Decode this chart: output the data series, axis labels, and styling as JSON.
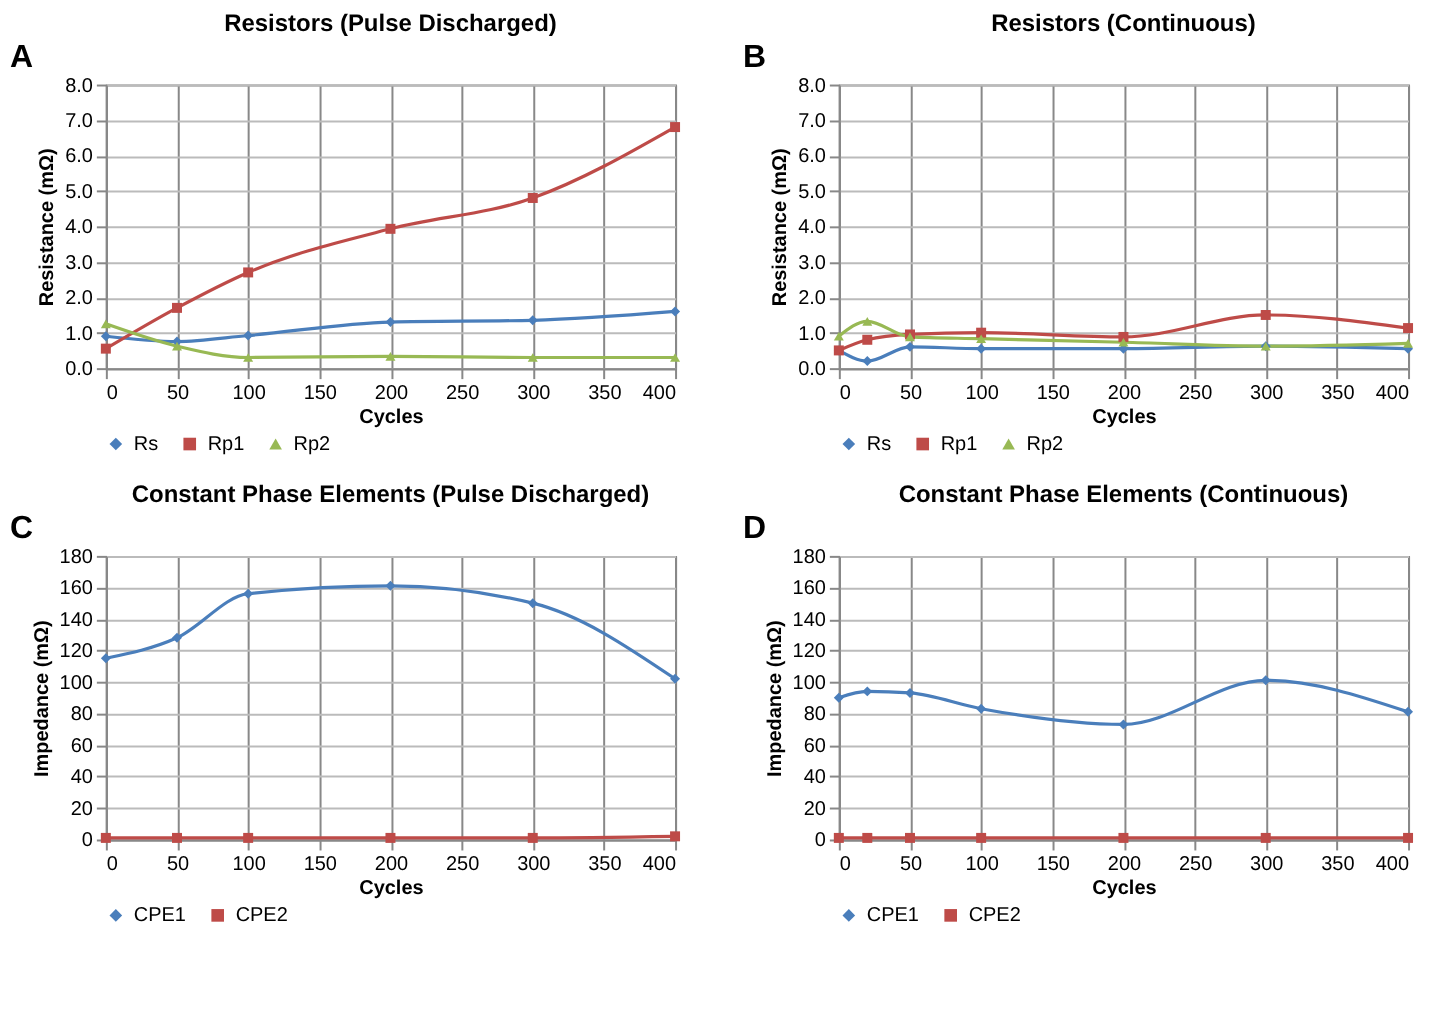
{
  "chart_data": [
    {
      "type": "line",
      "title": "Resistors (Pulse Discharged)",
      "annotations": [
        "A"
      ],
      "xlabel": "Cycles",
      "ylabel": "Resistance (mΩ)",
      "x": [
        0,
        50,
        100,
        200,
        300,
        400
      ],
      "xlim": [
        0,
        400
      ],
      "xticks": [
        0,
        50,
        100,
        150,
        200,
        250,
        300,
        350,
        400
      ],
      "ylim": [
        0,
        8
      ],
      "yticks": [
        {
          "value": 0,
          "label": "0.0"
        },
        {
          "value": 1,
          "label": "1.0"
        },
        {
          "value": 2,
          "label": "2.0"
        },
        {
          "value": 3,
          "label": "3.0"
        },
        {
          "value": 4,
          "label": "4.0"
        },
        {
          "value": 5,
          "label": "5.0"
        },
        {
          "value": 6,
          "label": "6.0"
        },
        {
          "value": 7,
          "label": "7.0"
        },
        {
          "value": 8,
          "label": "8.0"
        }
      ],
      "grid": true,
      "legend": "bottom",
      "series": [
        {
          "name": "Rs",
          "color": "#4a7ebb",
          "marker": "diamond",
          "values": [
            0.9,
            0.75,
            0.92,
            1.3,
            1.35,
            1.6
          ]
        },
        {
          "name": "Rp1",
          "color": "#be4b48",
          "marker": "square",
          "values": [
            0.55,
            1.7,
            2.7,
            3.93,
            4.8,
            6.8
          ]
        },
        {
          "name": "Rp2",
          "color": "#98b954",
          "marker": "triangle",
          "values": [
            1.25,
            0.62,
            0.3,
            0.33,
            0.3,
            0.3
          ]
        }
      ]
    },
    {
      "type": "line",
      "title": "Resistors (Continuous)",
      "annotations": [
        "B"
      ],
      "xlabel": "Cycles",
      "ylabel": "Resistance (mΩ)",
      "x": [
        0,
        20,
        50,
        100,
        200,
        300,
        400
      ],
      "xlim": [
        0,
        400
      ],
      "xticks": [
        0,
        50,
        100,
        150,
        200,
        250,
        300,
        350,
        400
      ],
      "ylim": [
        0,
        8
      ],
      "yticks": [
        {
          "value": 0,
          "label": "0.0"
        },
        {
          "value": 1,
          "label": "1.0"
        },
        {
          "value": 2,
          "label": "2.0"
        },
        {
          "value": 3,
          "label": "3.0"
        },
        {
          "value": 4,
          "label": "4.0"
        },
        {
          "value": 5,
          "label": "5.0"
        },
        {
          "value": 6,
          "label": "6.0"
        },
        {
          "value": 7,
          "label": "7.0"
        },
        {
          "value": 8,
          "label": "8.0"
        }
      ],
      "grid": true,
      "legend": "bottom",
      "series": [
        {
          "name": "Rs",
          "color": "#4a7ebb",
          "marker": "diamond",
          "values": [
            0.5,
            0.2,
            0.6,
            0.55,
            0.55,
            0.62,
            0.55
          ]
        },
        {
          "name": "Rp1",
          "color": "#be4b48",
          "marker": "square",
          "values": [
            0.5,
            0.8,
            0.95,
            1.0,
            0.88,
            1.5,
            1.13
          ]
        },
        {
          "name": "Rp2",
          "color": "#98b954",
          "marker": "triangle",
          "values": [
            0.9,
            1.32,
            0.88,
            0.83,
            0.73,
            0.62,
            0.7
          ]
        }
      ]
    },
    {
      "type": "line",
      "title": "Constant Phase Elements (Pulse Discharged)",
      "annotations": [
        "C"
      ],
      "xlabel": "Cycles",
      "ylabel": "Impedance (mΩ)",
      "x": [
        0,
        50,
        100,
        200,
        300,
        400
      ],
      "xlim": [
        0,
        400
      ],
      "xticks": [
        0,
        50,
        100,
        150,
        200,
        250,
        300,
        350,
        400
      ],
      "ylim": [
        0,
        180
      ],
      "yticks": [
        0,
        20,
        40,
        60,
        80,
        100,
        120,
        140,
        160,
        180
      ],
      "grid": true,
      "legend": "bottom",
      "series": [
        {
          "name": "CPE1",
          "color": "#4a7ebb",
          "marker": "diamond",
          "values": [
            115,
            128,
            156,
            161,
            150,
            102
          ]
        },
        {
          "name": "CPE2",
          "color": "#be4b48",
          "marker": "square",
          "values": [
            1,
            1,
            1,
            1,
            1,
            2
          ]
        }
      ]
    },
    {
      "type": "line",
      "title": "Constant Phase Elements (Continuous)",
      "annotations": [
        "D"
      ],
      "xlabel": "Cycles",
      "ylabel": "Impedance (mΩ)",
      "x": [
        0,
        20,
        50,
        100,
        200,
        300,
        400
      ],
      "xlim": [
        0,
        400
      ],
      "xticks": [
        0,
        50,
        100,
        150,
        200,
        250,
        300,
        350,
        400
      ],
      "ylim": [
        0,
        180
      ],
      "yticks": [
        0,
        20,
        40,
        60,
        80,
        100,
        120,
        140,
        160,
        180
      ],
      "grid": true,
      "legend": "bottom",
      "series": [
        {
          "name": "CPE1",
          "color": "#4a7ebb",
          "marker": "diamond",
          "values": [
            90,
            94,
            93,
            83,
            73,
            101,
            81
          ]
        },
        {
          "name": "CPE2",
          "color": "#be4b48",
          "marker": "square",
          "values": [
            1,
            1,
            1,
            1,
            1,
            1,
            1
          ]
        }
      ]
    }
  ]
}
